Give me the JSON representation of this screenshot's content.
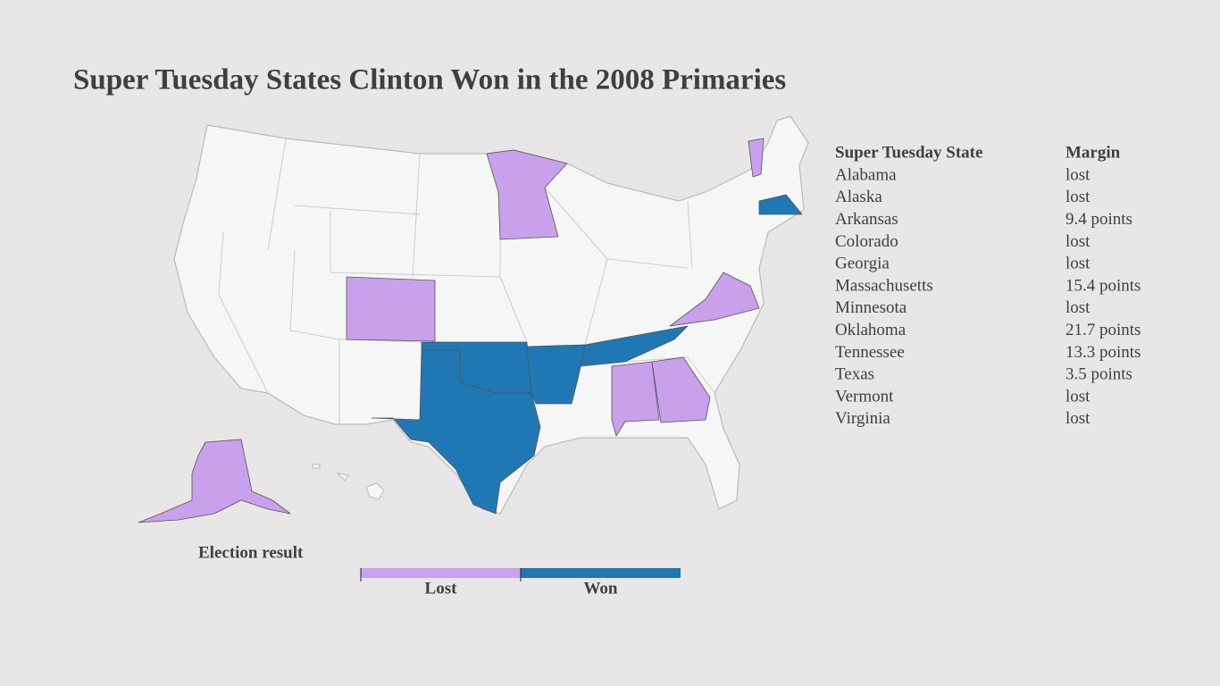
{
  "title": "Super Tuesday States Clinton Won in the 2008 Primaries",
  "table": {
    "columns": [
      "Super Tuesday State",
      "Margin"
    ],
    "rows": [
      [
        "Alabama",
        "lost"
      ],
      [
        "Alaska",
        "lost"
      ],
      [
        "Arkansas",
        "9.4 points"
      ],
      [
        "Colorado",
        "lost"
      ],
      [
        "Georgia",
        "lost"
      ],
      [
        "Massachusetts",
        "15.4 points"
      ],
      [
        "Minnesota",
        "lost"
      ],
      [
        "Oklahoma",
        "21.7 points"
      ],
      [
        "Tennessee",
        "13.3 points"
      ],
      [
        "Texas",
        "3.5 points"
      ],
      [
        "Vermont",
        "lost"
      ],
      [
        "Virginia",
        "lost"
      ]
    ]
  },
  "legend": {
    "title": "Election result",
    "items": [
      {
        "label": "Lost",
        "color": "#c9a0ec"
      },
      {
        "label": "Won",
        "color": "#1f77b4"
      }
    ]
  }
}
